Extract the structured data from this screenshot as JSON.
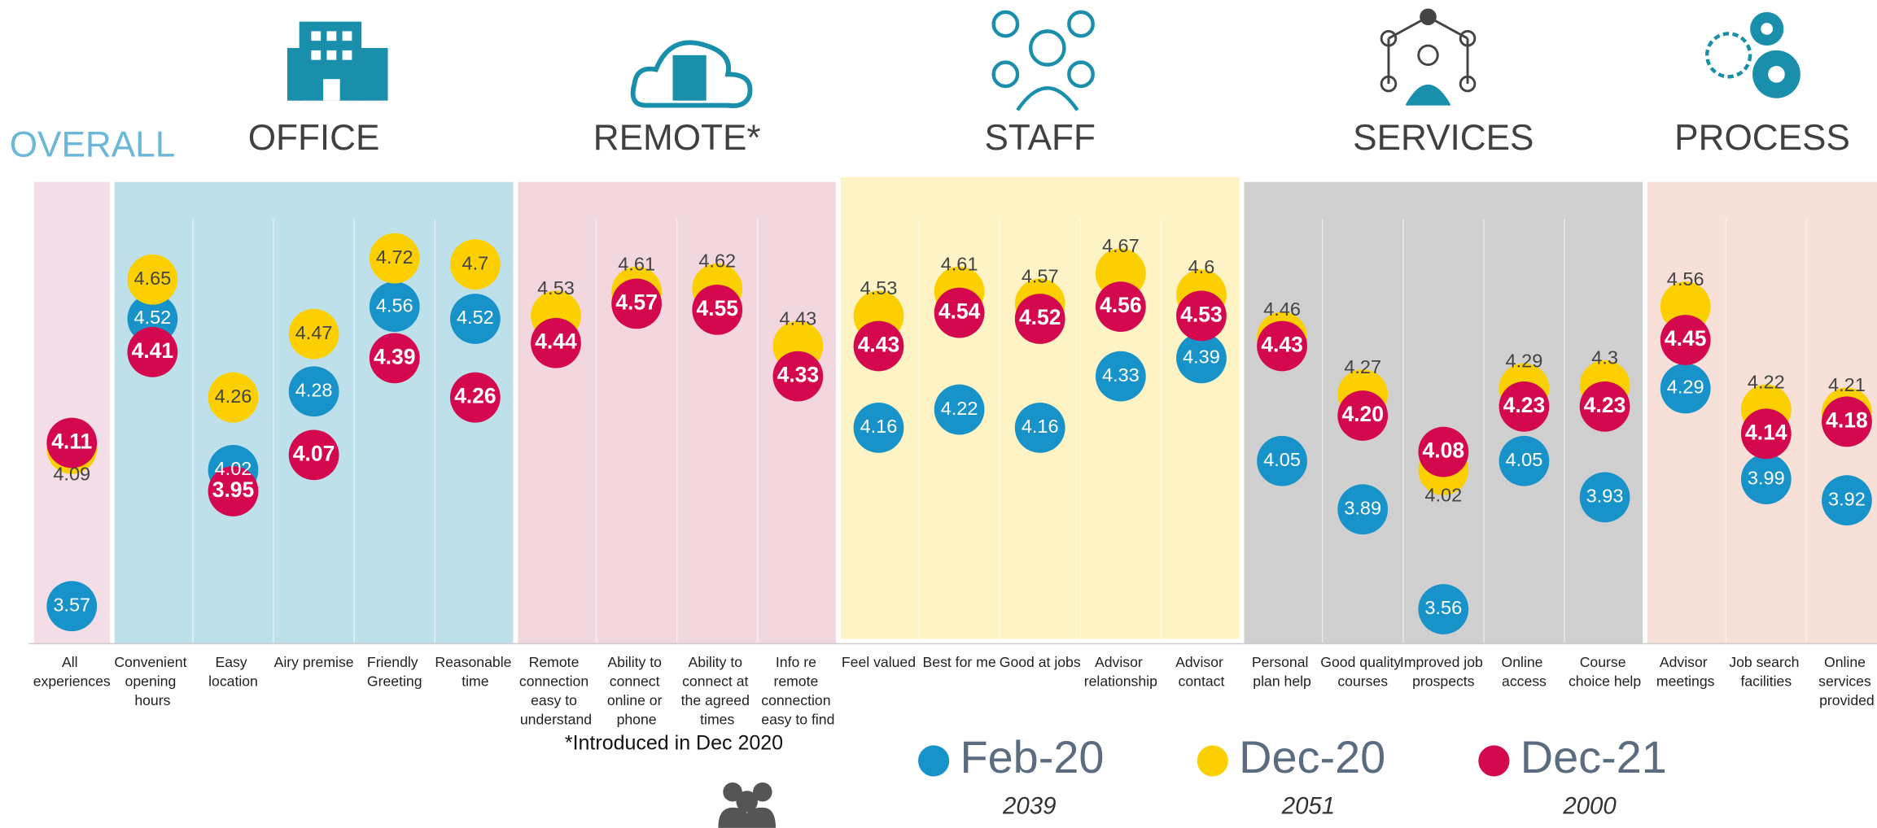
{
  "chart_data": {
    "type": "dot",
    "groups": [
      "OVERALL",
      "OFFICE",
      "REMOTE*",
      "STAFF",
      "SERVICES",
      "PROCESS"
    ],
    "note": "*Introduced in Dec 2020",
    "categories": [
      "All experiences",
      "Convenient opening hours",
      "Easy location",
      "Airy premise",
      "Friendly Greeting",
      "Reasonable time",
      "Remote connection easy to understand",
      "Ability to connect online or phone",
      "Ability to connect at the agreed times",
      "Info re remote connection easy to find",
      "Feel valued",
      "Best for me",
      "Good at jobs",
      "Advisor relationship",
      "Advisor contact",
      "Personal plan help",
      "Good quality courses",
      "Improved job prospects",
      "Online access",
      "Course choice help",
      "Advisor meetings",
      "Job search facilities",
      "Online services provided"
    ],
    "ylim": [
      3.45,
      4.85
    ],
    "series": [
      {
        "name": "Feb-20",
        "sample": "2039",
        "color": "#1793c9",
        "values": [
          3.57,
          4.52,
          4.02,
          4.28,
          4.56,
          4.52,
          null,
          null,
          null,
          null,
          4.16,
          4.22,
          4.16,
          4.33,
          4.39,
          4.05,
          3.89,
          3.56,
          4.05,
          3.93,
          4.29,
          3.99,
          3.92
        ]
      },
      {
        "name": "Dec-20",
        "sample": "2051",
        "color": "#fcd000",
        "values": [
          4.09,
          4.65,
          4.26,
          4.47,
          4.72,
          4.7,
          4.53,
          4.61,
          4.62,
          4.43,
          4.53,
          4.61,
          4.57,
          4.67,
          4.6,
          4.46,
          4.27,
          4.02,
          4.29,
          4.3,
          4.56,
          4.22,
          4.21
        ]
      },
      {
        "name": "Dec-21",
        "sample": "2000",
        "color": "#d4084f",
        "values": [
          4.11,
          4.41,
          3.95,
          4.07,
          4.39,
          4.26,
          4.44,
          4.57,
          4.55,
          4.33,
          4.43,
          4.54,
          4.52,
          4.56,
          4.53,
          4.43,
          4.2,
          4.08,
          4.23,
          4.23,
          4.45,
          4.14,
          4.18
        ],
        "value_labels": [
          "4.11",
          "4.41",
          "3.95",
          "4.07",
          "4.39",
          "4.26",
          "4.44",
          "4.57",
          "4.55",
          "4.33",
          "4.43",
          "4.54",
          "4.52",
          "4.56",
          "4.53",
          "4.43",
          "4.20",
          "4.08",
          "4.23",
          "4.23",
          "4.45",
          "4.14",
          "4.18"
        ]
      }
    ]
  }
}
